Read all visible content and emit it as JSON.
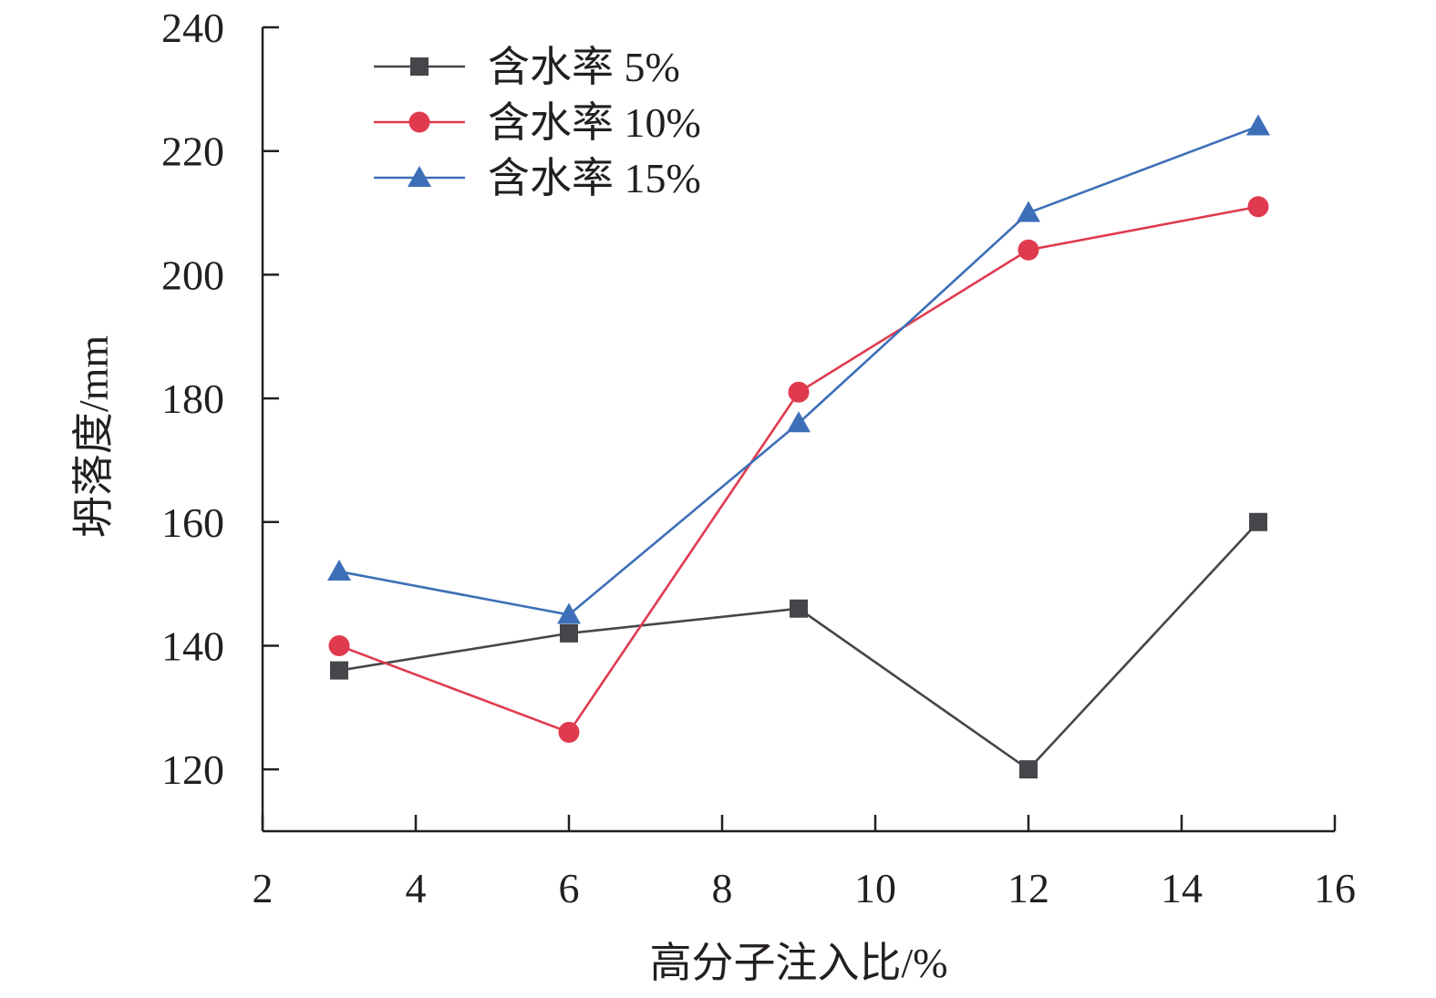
{
  "chart_data": {
    "type": "line",
    "xlabel": "高分子注入比/%",
    "ylabel": "坍落度/mm",
    "xlim": [
      2,
      16
    ],
    "ylim": [
      110,
      240
    ],
    "xticks": [
      2,
      4,
      6,
      8,
      10,
      12,
      14,
      16
    ],
    "yticks": [
      120,
      140,
      160,
      180,
      200,
      220,
      240
    ],
    "x": [
      3,
      6,
      9,
      12,
      15
    ],
    "legend_position": "top-left",
    "grid": false,
    "series": [
      {
        "name": "含水率 5%",
        "values": [
          136,
          142,
          146,
          120,
          160
        ],
        "color": "#45454a",
        "marker": "square"
      },
      {
        "name": "含水率 10%",
        "values": [
          140,
          126,
          181,
          204,
          211
        ],
        "color": "#e03a4e",
        "marker": "circle"
      },
      {
        "name": "含水率 15%",
        "values": [
          152,
          145,
          176,
          210,
          224
        ],
        "color": "#3d6fb8",
        "marker": "triangle"
      }
    ]
  }
}
